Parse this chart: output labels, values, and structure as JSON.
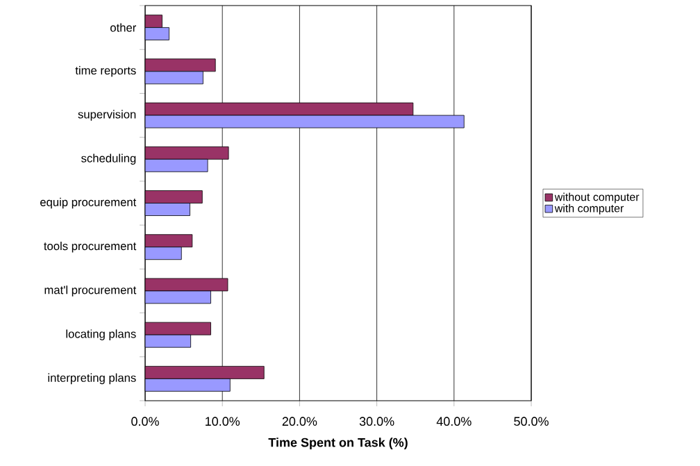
{
  "chart_data": {
    "type": "bar",
    "orientation": "horizontal",
    "xlabel": "Time Spent on Task (%)",
    "categories": [
      "other",
      "time reports",
      "supervision",
      "scheduling",
      "equip procurement",
      "tools procurement",
      "mat'l procurement",
      "locating plans",
      "interpreting plans"
    ],
    "series": [
      {
        "name": "without computer",
        "color": "#993366",
        "values": [
          2.2,
          9.1,
          34.7,
          10.8,
          7.4,
          6.1,
          10.7,
          8.5,
          15.4
        ]
      },
      {
        "name": "with computer",
        "color": "#9999ff",
        "values": [
          3.1,
          7.5,
          41.3,
          8.1,
          5.8,
          4.7,
          8.5,
          5.9,
          11.0
        ]
      }
    ],
    "xlim": [
      0,
      50
    ],
    "xticks": [
      {
        "value": 0,
        "label": "0.0%"
      },
      {
        "value": 10,
        "label": "10.0%"
      },
      {
        "value": 20,
        "label": "20.0%"
      },
      {
        "value": 30,
        "label": "30.0%"
      },
      {
        "value": 40,
        "label": "40.0%"
      },
      {
        "value": 50,
        "label": "50.0%"
      }
    ],
    "grid": "x",
    "legend": "right"
  }
}
